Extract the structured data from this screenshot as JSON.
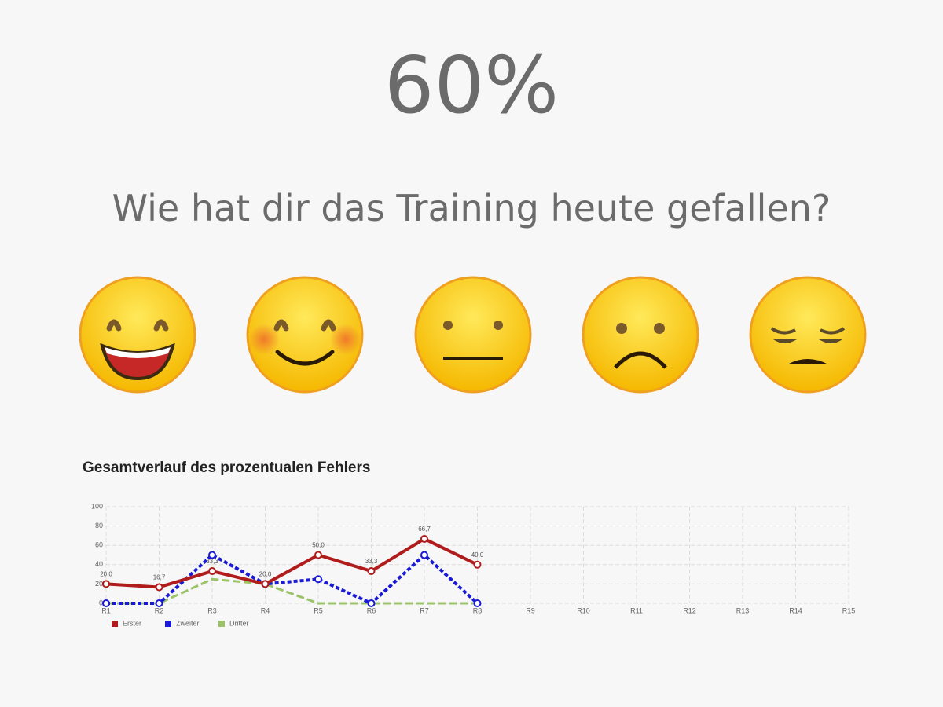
{
  "header": {
    "score": "60%",
    "question": "Wie hat dir das Training heute gefallen?"
  },
  "chart_data": {
    "type": "line",
    "title": "Gesamtverlauf des prozentualen Fehlers",
    "categories": [
      "R1",
      "R2",
      "R3",
      "R4",
      "R5",
      "R6",
      "R7",
      "R8",
      "R9",
      "R10",
      "R11",
      "R12",
      "R13",
      "R14",
      "R15"
    ],
    "series": [
      {
        "name": "Erster",
        "color": "#b01c1c",
        "values": [
          20,
          16.7,
          33.3,
          20,
          50,
          33.3,
          66.7,
          40,
          null,
          null,
          null,
          null,
          null,
          null,
          null
        ],
        "value_labels": [
          "20,0",
          "16,7",
          "33,3",
          "20,0",
          "50,0",
          "33,3",
          "66,7",
          "40,0",
          null,
          null,
          null,
          null,
          null,
          null,
          null
        ]
      },
      {
        "name": "Zweiter",
        "color": "#1a1ad6",
        "values": [
          0,
          0,
          50,
          20,
          25,
          0,
          50,
          0,
          null,
          null,
          null,
          null,
          null,
          null,
          null
        ]
      },
      {
        "name": "Dritter",
        "color": "#9cc36a",
        "values": [
          0,
          0,
          25,
          20,
          0,
          0,
          0,
          0,
          null,
          null,
          null,
          null,
          null,
          null,
          null
        ]
      }
    ],
    "ylim": [
      0,
      100
    ],
    "yticks": [
      0,
      20,
      40,
      60,
      80,
      100
    ],
    "grid": true
  }
}
